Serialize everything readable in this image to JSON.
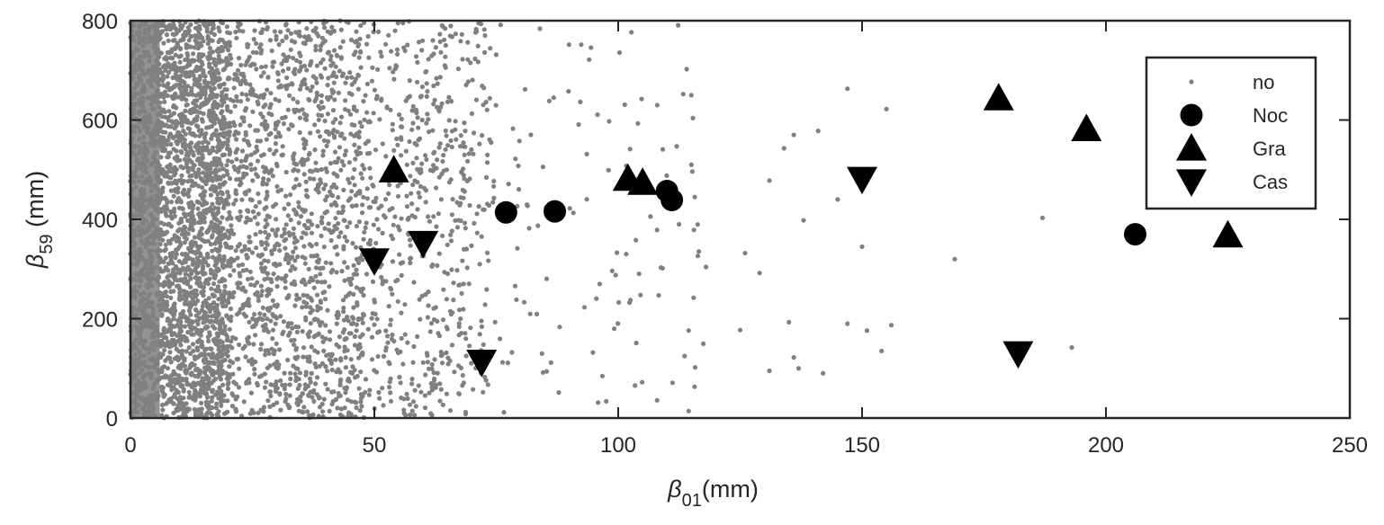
{
  "chart_data": {
    "type": "scatter",
    "xlabel": {
      "symbol": "β",
      "sub": "01",
      "unit": "(mm)"
    },
    "ylabel": {
      "symbol": "β",
      "sub": "59",
      "unit": "(mm)"
    },
    "xlim": [
      0,
      250
    ],
    "ylim": [
      0,
      800
    ],
    "xticks": [
      0,
      50,
      100,
      150,
      200,
      250
    ],
    "yticks": [
      0,
      200,
      400,
      600,
      800
    ],
    "grid": false,
    "legend_position": "top-right",
    "colors": {
      "no": "#808080",
      "marker": "#000000",
      "axis": "#262626"
    },
    "background_cloud": {
      "name": "no",
      "description_of_density": "dense at small x, thinning toward x≈120, sparse beyond",
      "approx_count": 5000
    },
    "series": [
      {
        "name": "no",
        "marker": "dot",
        "points": [
          [
            131,
            478
          ],
          [
            134,
            543
          ],
          [
            136,
            570
          ],
          [
            138,
            398
          ],
          [
            141,
            578
          ],
          [
            145,
            440
          ],
          [
            147,
            663
          ],
          [
            150,
            345
          ],
          [
            155,
            622
          ],
          [
            125,
            177
          ],
          [
            131,
            95
          ],
          [
            135,
            193
          ],
          [
            136,
            122
          ],
          [
            137,
            100
          ],
          [
            142,
            90
          ],
          [
            147,
            190
          ],
          [
            151,
            176
          ],
          [
            154,
            135
          ],
          [
            156,
            187
          ],
          [
            126,
            332
          ],
          [
            129,
            292
          ],
          [
            169,
            320
          ],
          [
            187,
            403
          ],
          [
            193,
            142
          ],
          [
            115,
            650
          ],
          [
            108,
            630
          ],
          [
            112,
            547
          ],
          [
            115,
            510
          ]
        ]
      },
      {
        "name": "Noc",
        "marker": "circle",
        "points": [
          [
            77,
            414
          ],
          [
            87,
            416
          ],
          [
            110,
            457
          ],
          [
            111,
            439
          ],
          [
            206,
            370
          ]
        ]
      },
      {
        "name": "Gra",
        "marker": "triangle-up",
        "points": [
          [
            54,
            499
          ],
          [
            102,
            482
          ],
          [
            105,
            474
          ],
          [
            178,
            644
          ],
          [
            196,
            582
          ],
          [
            225,
            368
          ]
        ]
      },
      {
        "name": "Cas",
        "marker": "triangle-down",
        "points": [
          [
            50,
            317
          ],
          [
            60,
            352
          ],
          [
            72,
            113
          ],
          [
            150,
            481
          ],
          [
            182,
            130
          ]
        ]
      }
    ],
    "legend": [
      {
        "label": "no",
        "marker": "dot"
      },
      {
        "label": "Noc",
        "marker": "circle"
      },
      {
        "label": "Gra",
        "marker": "triangle-up"
      },
      {
        "label": "Cas",
        "marker": "triangle-down"
      }
    ]
  }
}
